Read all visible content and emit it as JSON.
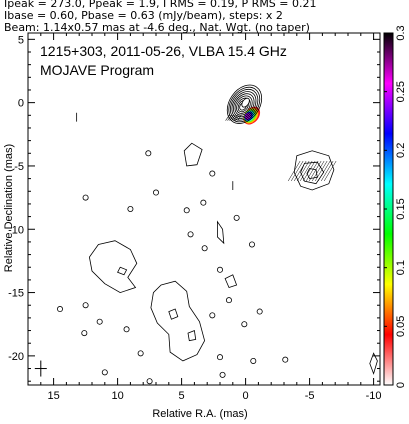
{
  "header": {
    "line1": "Ipeak = 273.0, Ppeak = 1.9, I RMS = 0.19, P RMS = 0.21",
    "line2": "Ibase = 0.60, Pbase = 0.63 (mJy/beam), steps: x 2",
    "line3": "Beam: 1.14x0.57 mas at -4.6 deg., Nat. Wgt. (no taper)"
  },
  "chart_data": {
    "type": "contour",
    "annotation_lines": [
      "1215+303, 2011-05-26, VLBA 15.4 GHz",
      "MOJAVE Program"
    ],
    "xlabel": "Relative R.A. (mas)",
    "ylabel": "Relative Declination (mas)",
    "xlim": [
      17,
      -10.5
    ],
    "ylim": [
      -22.3,
      5.5
    ],
    "xticks": [
      15,
      10,
      5,
      0,
      -5,
      -10
    ],
    "yticks": [
      5,
      0,
      -5,
      -10,
      -15,
      -20
    ],
    "colorbar": {
      "range": [
        0,
        0.3
      ],
      "ticks": [
        0,
        0.05,
        0.1,
        0.15,
        0.2,
        0.25,
        0.3
      ],
      "tick_labels": [
        "0",
        "0.05",
        "0.1",
        "0.15",
        "0.2",
        "0.25",
        "0.3"
      ],
      "colors": [
        "#ffffff",
        "#ff0000",
        "#ffff00",
        "#00ff00",
        "#00ffff",
        "#0000ff",
        "#ff00ff",
        "#000000"
      ]
    },
    "core": {
      "x": 0,
      "y": 0,
      "n_contours": 9
    },
    "beam_center": {
      "x": 16,
      "y": -21
    }
  }
}
